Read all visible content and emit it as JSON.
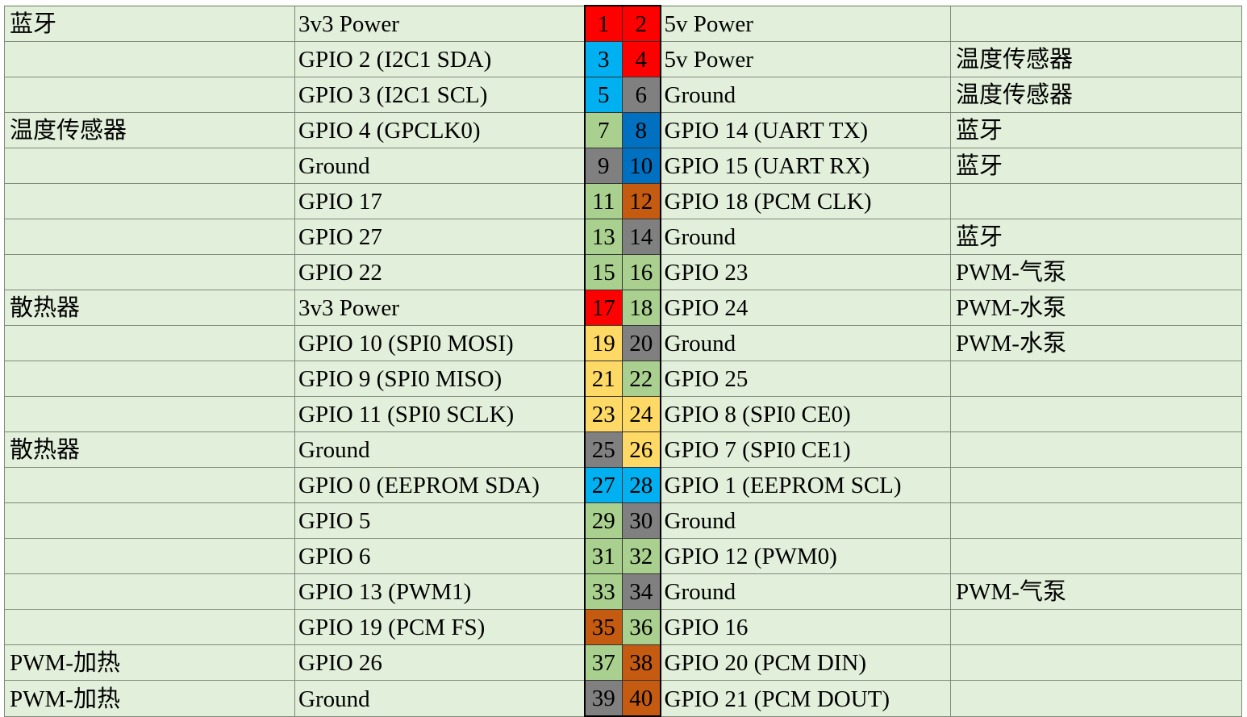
{
  "colors": {
    "power3v3": "#ff0000",
    "power5v": "#ff0000",
    "i2c": "#00b0f0",
    "ground": "#808080",
    "gpio": "#a9d08e",
    "uart": "#0070c0",
    "pcm": "#c55a11",
    "spi": "#ffd966",
    "eeprom": "#00b0f0",
    "cell_bg": "#e2efda"
  },
  "rows": [
    {
      "left_note": "蓝牙",
      "left_func": "3v3 Power",
      "left_pin": "1",
      "left_color": "power3v3",
      "right_pin": "2",
      "right_color": "power5v",
      "right_func": "5v Power",
      "right_note": ""
    },
    {
      "left_note": "",
      "left_func": "GPIO 2 (I2C1 SDA)",
      "left_pin": "3",
      "left_color": "i2c",
      "right_pin": "4",
      "right_color": "power5v",
      "right_func": "5v Power",
      "right_note": "温度传感器"
    },
    {
      "left_note": "",
      "left_func": "GPIO 3 (I2C1 SCL)",
      "left_pin": "5",
      "left_color": "i2c",
      "right_pin": "6",
      "right_color": "ground",
      "right_func": "Ground",
      "right_note": "温度传感器"
    },
    {
      "left_note": "温度传感器",
      "left_func": "GPIO 4 (GPCLK0)",
      "left_pin": "7",
      "left_color": "gpio",
      "right_pin": "8",
      "right_color": "uart",
      "right_func": "GPIO 14 (UART TX)",
      "right_note": "蓝牙"
    },
    {
      "left_note": "",
      "left_func": "Ground",
      "left_pin": "9",
      "left_color": "ground",
      "right_pin": "10",
      "right_color": "uart",
      "right_func": "GPIO 15 (UART RX)",
      "right_note": "蓝牙"
    },
    {
      "left_note": "",
      "left_func": "GPIO 17",
      "left_pin": "11",
      "left_color": "gpio",
      "right_pin": "12",
      "right_color": "pcm",
      "right_func": "GPIO 18 (PCM CLK)",
      "right_note": ""
    },
    {
      "left_note": "",
      "left_func": "GPIO 27",
      "left_pin": "13",
      "left_color": "gpio",
      "right_pin": "14",
      "right_color": "ground",
      "right_func": "Ground",
      "right_note": "蓝牙"
    },
    {
      "left_note": "",
      "left_func": "GPIO 22",
      "left_pin": "15",
      "left_color": "gpio",
      "right_pin": "16",
      "right_color": "gpio",
      "right_func": "GPIO 23",
      "right_note": "PWM-气泵"
    },
    {
      "left_note": "散热器",
      "left_func": "3v3 Power",
      "left_pin": "17",
      "left_color": "power3v3",
      "right_pin": "18",
      "right_color": "gpio",
      "right_func": "GPIO 24",
      "right_note": "PWM-水泵"
    },
    {
      "left_note": "",
      "left_func": "GPIO 10 (SPI0 MOSI)",
      "left_pin": "19",
      "left_color": "spi",
      "right_pin": "20",
      "right_color": "ground",
      "right_func": "Ground",
      "right_note": "PWM-水泵"
    },
    {
      "left_note": "",
      "left_func": "GPIO 9 (SPI0 MISO)",
      "left_pin": "21",
      "left_color": "spi",
      "right_pin": "22",
      "right_color": "gpio",
      "right_func": "GPIO 25",
      "right_note": ""
    },
    {
      "left_note": "",
      "left_func": "GPIO 11 (SPI0 SCLK)",
      "left_pin": "23",
      "left_color": "spi",
      "right_pin": "24",
      "right_color": "spi",
      "right_func": "GPIO 8 (SPI0 CE0)",
      "right_note": ""
    },
    {
      "left_note": "散热器",
      "left_func": "Ground",
      "left_pin": "25",
      "left_color": "ground",
      "right_pin": "26",
      "right_color": "spi",
      "right_func": "GPIO 7 (SPI0 CE1)",
      "right_note": ""
    },
    {
      "left_note": "",
      "left_func": "GPIO 0 (EEPROM SDA)",
      "left_pin": "27",
      "left_color": "eeprom",
      "right_pin": "28",
      "right_color": "eeprom",
      "right_func": "GPIO 1 (EEPROM SCL)",
      "right_note": ""
    },
    {
      "left_note": "",
      "left_func": "GPIO 5",
      "left_pin": "29",
      "left_color": "gpio",
      "right_pin": "30",
      "right_color": "ground",
      "right_func": "Ground",
      "right_note": ""
    },
    {
      "left_note": "",
      "left_func": "GPIO 6",
      "left_pin": "31",
      "left_color": "gpio",
      "right_pin": "32",
      "right_color": "gpio",
      "right_func": "GPIO 12 (PWM0)",
      "right_note": ""
    },
    {
      "left_note": "",
      "left_func": "GPIO 13 (PWM1)",
      "left_pin": "33",
      "left_color": "gpio",
      "right_pin": "34",
      "right_color": "ground",
      "right_func": "Ground",
      "right_note": "PWM-气泵"
    },
    {
      "left_note": "",
      "left_func": "GPIO 19 (PCM FS)",
      "left_pin": "35",
      "left_color": "pcm",
      "right_pin": "36",
      "right_color": "gpio",
      "right_func": "GPIO 16",
      "right_note": ""
    },
    {
      "left_note": "PWM-加热",
      "left_func": "GPIO 26",
      "left_pin": "37",
      "left_color": "gpio",
      "right_pin": "38",
      "right_color": "pcm",
      "right_func": "GPIO 20 (PCM DIN)",
      "right_note": ""
    },
    {
      "left_note": "PWM-加热",
      "left_func": "Ground",
      "left_pin": "39",
      "left_color": "ground",
      "right_pin": "40",
      "right_color": "pcm",
      "right_func": "GPIO 21 (PCM DOUT)",
      "right_note": ""
    }
  ]
}
